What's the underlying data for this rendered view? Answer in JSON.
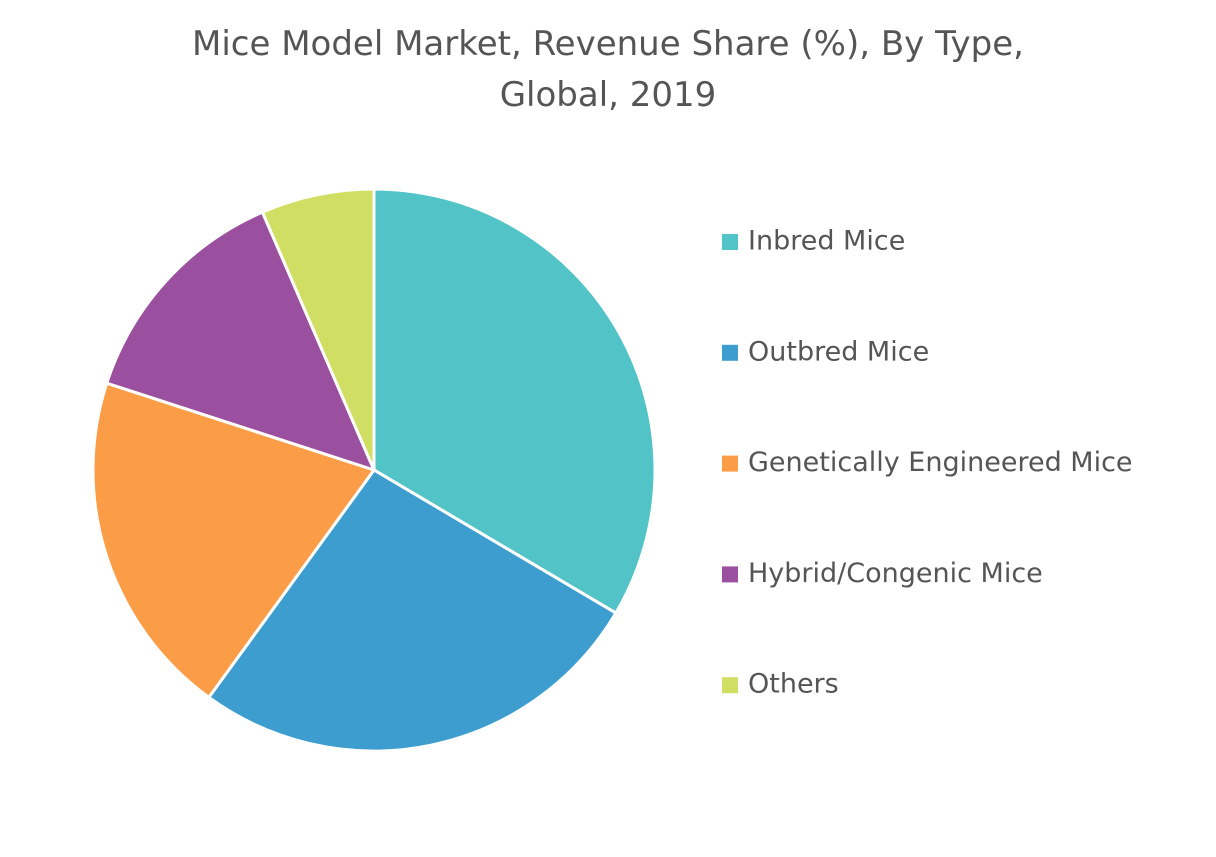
{
  "chart_data": {
    "type": "pie",
    "title": [
      "Mice Model Market, Revenue Share (%), By Type,",
      "Global, 2019"
    ],
    "categories": [
      "Inbred Mice",
      "Outbred Mice",
      "Genetically Engineered Mice",
      "Hybrid/Congenic Mice",
      "Others"
    ],
    "values": [
      33.5,
      26.5,
      20,
      13.5,
      6.5
    ],
    "colors": [
      "#52c3c6",
      "#3d9dce",
      "#fb9d46",
      "#9a509e",
      "#d0df64"
    ],
    "legend": "right"
  }
}
